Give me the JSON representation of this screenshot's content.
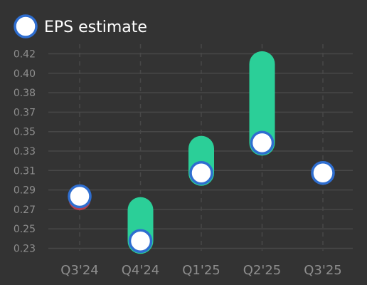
{
  "chart_data": {
    "type": "scatter",
    "legend": {
      "label": "EPS estimate",
      "position": "top-left"
    },
    "categories": [
      "Q3'24",
      "Q4'24",
      "Q1'25",
      "Q2'25",
      "Q3'25"
    ],
    "y_ticks": [
      "0.23",
      "0.25",
      "0.27",
      "0.29",
      "0.31",
      "0.33",
      "0.35",
      "0.37",
      "0.38",
      "0.40",
      "0.42"
    ],
    "ylim": [
      0.2225,
      0.4225
    ],
    "series": [
      {
        "name": "EPS estimate",
        "values": [
          0.276,
          0.23,
          0.3,
          0.331,
          0.3
        ]
      }
    ],
    "actual_values": [
      0.273,
      0.262,
      0.325,
      0.412,
      null
    ],
    "grid": true,
    "colors": {
      "background": "#333333",
      "grid": "#484848",
      "tick_text": "#8e8e8e",
      "estimate_fill": "#ffffff",
      "estimate_stroke": "#2f6ed0",
      "beat_bar": "#2bcf98",
      "miss_ring": "#b84050",
      "legend_text": "#ffffff"
    }
  }
}
